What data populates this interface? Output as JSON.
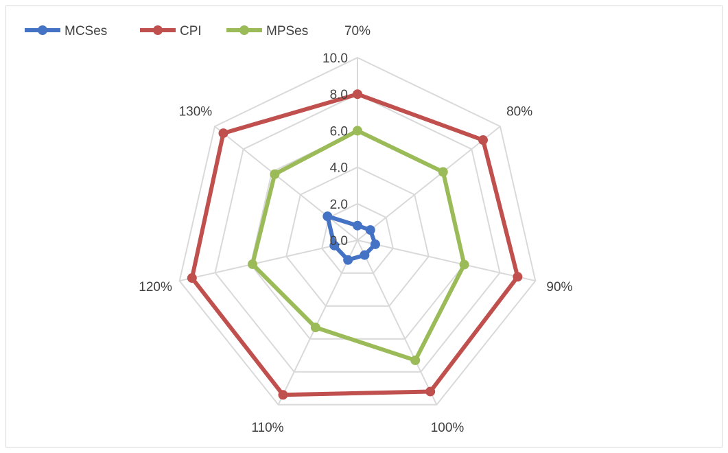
{
  "chart_data": {
    "type": "radar",
    "categories": [
      "70%",
      "80%",
      "90%",
      "100%",
      "110%",
      "120%",
      "130%"
    ],
    "rlim": [
      0,
      10
    ],
    "rticks": [
      "0.0",
      "2.0",
      "4.0",
      "6.0",
      "8.0",
      "10.0"
    ],
    "rtick_values": [
      0,
      2,
      4,
      6,
      8,
      10
    ],
    "grid": true,
    "legend_position": "top-left",
    "series": [
      {
        "name": "MCSes",
        "color": "#4472c4",
        "values": [
          0.8,
          0.9,
          1.0,
          0.9,
          1.2,
          1.3,
          2.1
        ]
      },
      {
        "name": "CPI",
        "color": "#c0504d",
        "values": [
          8.0,
          8.8,
          9.0,
          9.2,
          9.4,
          9.3,
          9.4
        ]
      },
      {
        "name": "MPSes",
        "color": "#9bbb59",
        "values": [
          6.0,
          6.0,
          6.0,
          7.3,
          5.3,
          5.9,
          5.8
        ]
      }
    ]
  }
}
